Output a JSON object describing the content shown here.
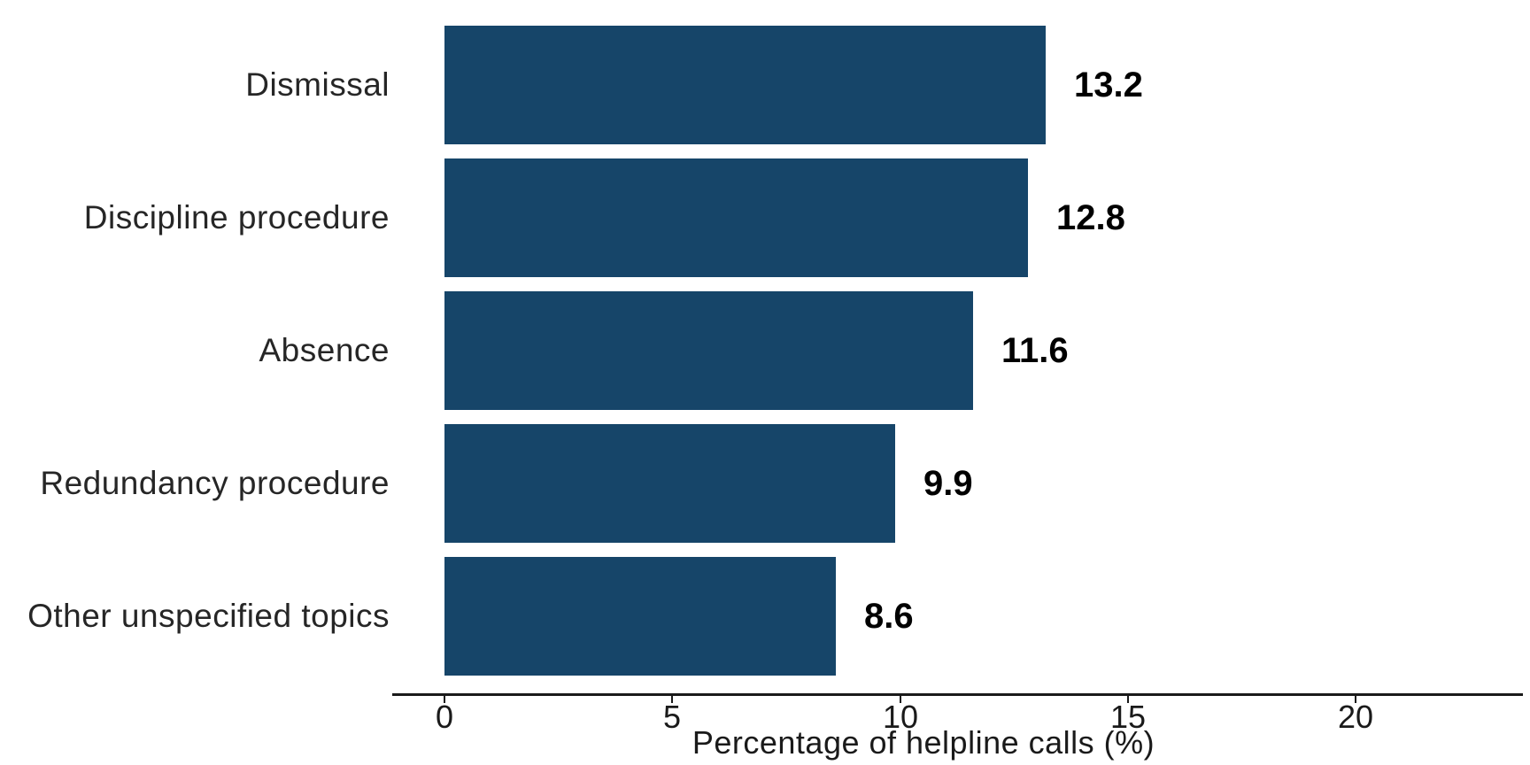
{
  "chart_data": {
    "type": "bar",
    "orientation": "horizontal",
    "categories": [
      "Dismissal",
      "Discipline procedure",
      "Absence",
      "Redundancy procedure",
      "Other unspecified topics"
    ],
    "values": [
      13.2,
      12.8,
      11.6,
      9.9,
      8.6
    ],
    "value_label_decimals": 1,
    "title": "",
    "xlabel": "Percentage of helpline calls (%)",
    "ylabel": "",
    "x_ticks": [
      0,
      5,
      10,
      15,
      20
    ],
    "xlim": [
      -1.15,
      23.7
    ],
    "grid": false,
    "legend_position": "none",
    "bar_color": "#164569",
    "axis_color": "#1a1a1a",
    "category_text_color": "#262626",
    "value_text_color": "#000000"
  }
}
